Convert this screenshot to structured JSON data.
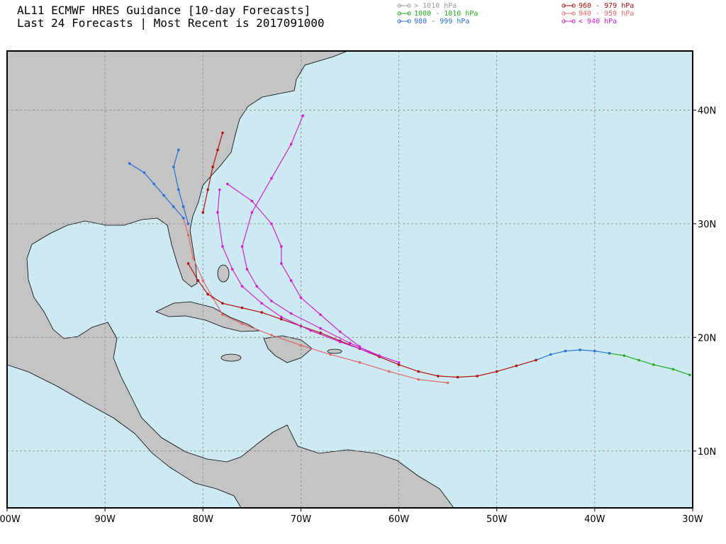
{
  "map": {
    "title": "AL11 ECMWF HRES Guidance [10-day Forecasts]",
    "subtitle": "Last 24 Forecasts | Most Recent is 2017091000",
    "legend": [
      {
        "label": "> 1010 hPa",
        "color": "#9a9a9a"
      },
      {
        "label": "1000 - 1010 hPa",
        "color": "#22aa22"
      },
      {
        "label": "980 - 999 hPa",
        "color": "#2a6fd6"
      },
      {
        "label": "960 - 979 hPa",
        "color": "#b01010"
      },
      {
        "label": "940 - 959 hPa",
        "color": "#e06868"
      },
      {
        "label": "< 940 hPa",
        "color": "#d020d0"
      }
    ],
    "xlim": [
      -100,
      -30
    ],
    "ylim": [
      5,
      45.2
    ],
    "lon_ticks": [
      {
        "value": -100,
        "label": "100W"
      },
      {
        "value": -90,
        "label": "90W"
      },
      {
        "value": -80,
        "label": "80W"
      },
      {
        "value": -70,
        "label": "70W"
      },
      {
        "value": -60,
        "label": "60W"
      },
      {
        "value": -50,
        "label": "50W"
      },
      {
        "value": -40,
        "label": "40W"
      },
      {
        "value": -30,
        "label": "30W"
      }
    ],
    "lat_ticks": [
      {
        "value": 10,
        "label": "10N"
      },
      {
        "value": 20,
        "label": "20N"
      },
      {
        "value": 30,
        "label": "30N"
      },
      {
        "value": 40,
        "label": "40N"
      }
    ],
    "tracks": [
      {
        "color": "#22aa22",
        "lon": [
          -30.3,
          -32,
          -34,
          -35.5,
          -37,
          -38.5
        ],
        "lat": [
          16.7,
          17.2,
          17.6,
          18.0,
          18.4,
          18.6
        ]
      },
      {
        "color": "#2a6fd6",
        "lon": [
          -38.5,
          -40,
          -41.5,
          -43,
          -44.5,
          -46
        ],
        "lat": [
          18.6,
          18.8,
          18.9,
          18.8,
          18.5,
          18.0
        ]
      },
      {
        "color": "#e06868",
        "lon": [
          -55,
          -58,
          -61,
          -64,
          -67,
          -70,
          -73,
          -76,
          -78,
          -79,
          -80,
          -81,
          -81.5,
          -82
        ],
        "lat": [
          16.0,
          16.3,
          17.0,
          17.8,
          18.5,
          19.3,
          20.2,
          21.2,
          22.0,
          23.5,
          25,
          27,
          29,
          30.5
        ]
      },
      {
        "color": "#b01010",
        "lon": [
          -46,
          -48,
          -50,
          -52,
          -54,
          -56,
          -58,
          -60,
          -62,
          -64,
          -66,
          -68,
          -70,
          -72,
          -74,
          -76,
          -78,
          -79.5,
          -80.5,
          -81.5
        ],
        "lat": [
          18.0,
          17.5,
          17.0,
          16.6,
          16.5,
          16.6,
          17,
          17.6,
          18.3,
          19.0,
          19.7,
          20.4,
          21.0,
          21.6,
          22.2,
          22.6,
          23.0,
          23.8,
          25.0,
          26.5
        ]
      },
      {
        "color": "#d020d0",
        "lon": [
          -60,
          -63,
          -66,
          -69,
          -72,
          -74,
          -76,
          -77,
          -78,
          -78.5,
          -78.3
        ],
        "lat": [
          17.8,
          18.7,
          19.6,
          20.6,
          21.8,
          23,
          24.5,
          26,
          28,
          31,
          33
        ]
      },
      {
        "color": "#d020d0",
        "lon": [
          -62,
          -65,
          -68,
          -71,
          -73,
          -74.5,
          -75.5,
          -76,
          -75,
          -73,
          -71,
          -69.8
        ],
        "lat": [
          18.4,
          19.5,
          20.8,
          22.1,
          23.2,
          24.5,
          26,
          28,
          31,
          34,
          37,
          39.5
        ]
      },
      {
        "color": "#d020d0",
        "lon": [
          -64,
          -66,
          -68,
          -70,
          -71,
          -72,
          -72,
          -73,
          -75,
          -77.5
        ],
        "lat": [
          19.2,
          20.5,
          22,
          23.5,
          25,
          26.5,
          28,
          30,
          32,
          33.5
        ]
      },
      {
        "color": "#2a6fd6",
        "lon": [
          -82,
          -83,
          -84,
          -85,
          -86,
          -87.5
        ],
        "lat": [
          30.5,
          31.5,
          32.5,
          33.5,
          34.5,
          35.3
        ]
      },
      {
        "color": "#2a6fd6",
        "lon": [
          -81.5,
          -82,
          -82.5,
          -83,
          -82.5
        ],
        "lat": [
          30,
          31.5,
          33,
          35,
          36.5
        ]
      },
      {
        "color": "#b01010",
        "lon": [
          -80,
          -79.5,
          -79,
          -78.5,
          -78
        ],
        "lat": [
          31,
          33,
          35,
          36.5,
          38
        ]
      }
    ]
  }
}
